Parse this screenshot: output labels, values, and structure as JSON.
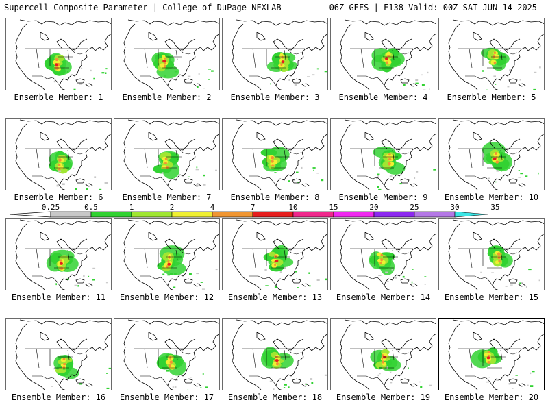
{
  "header": {
    "left": "Supercell Composite Parameter | College of DuPage NEXLAB",
    "right": "06Z GEFS | F138 Valid: 00Z SAT JUN 14 2025"
  },
  "members": [
    {
      "label": "Ensemble Member: 1"
    },
    {
      "label": "Ensemble Member: 2"
    },
    {
      "label": "Ensemble Member: 3"
    },
    {
      "label": "Ensemble Member: 4"
    },
    {
      "label": "Ensemble Member: 5"
    },
    {
      "label": "Ensemble Member: 6"
    },
    {
      "label": "Ensemble Member: 7"
    },
    {
      "label": "Ensemble Member: 8"
    },
    {
      "label": "Ensemble Member: 9"
    },
    {
      "label": "Ensemble Member: 10"
    },
    {
      "label": "Ensemble Member: 11"
    },
    {
      "label": "Ensemble Member: 12"
    },
    {
      "label": "Ensemble Member: 13"
    },
    {
      "label": "Ensemble Member: 14"
    },
    {
      "label": "Ensemble Member: 15"
    },
    {
      "label": "Ensemble Member: 16"
    },
    {
      "label": "Ensemble Member: 17"
    },
    {
      "label": "Ensemble Member: 18"
    },
    {
      "label": "Ensemble Member: 19"
    },
    {
      "label": "Ensemble Member: 20",
      "selected": true
    }
  ],
  "colorbar": {
    "ticks": [
      "0.25",
      "0.5",
      "1",
      "2",
      "4",
      "7",
      "10",
      "15",
      "20",
      "25",
      "30",
      "35"
    ],
    "colors": [
      "#c8c8c8",
      "#32d232",
      "#a0e632",
      "#f0f032",
      "#f09632",
      "#e61e1e",
      "#f0288c",
      "#f028f0",
      "#8c28f0",
      "#b478e6",
      "#3ce6e6"
    ]
  },
  "colors": {
    "coast": "#000000",
    "border": "#000000",
    "background": "#ffffff"
  }
}
